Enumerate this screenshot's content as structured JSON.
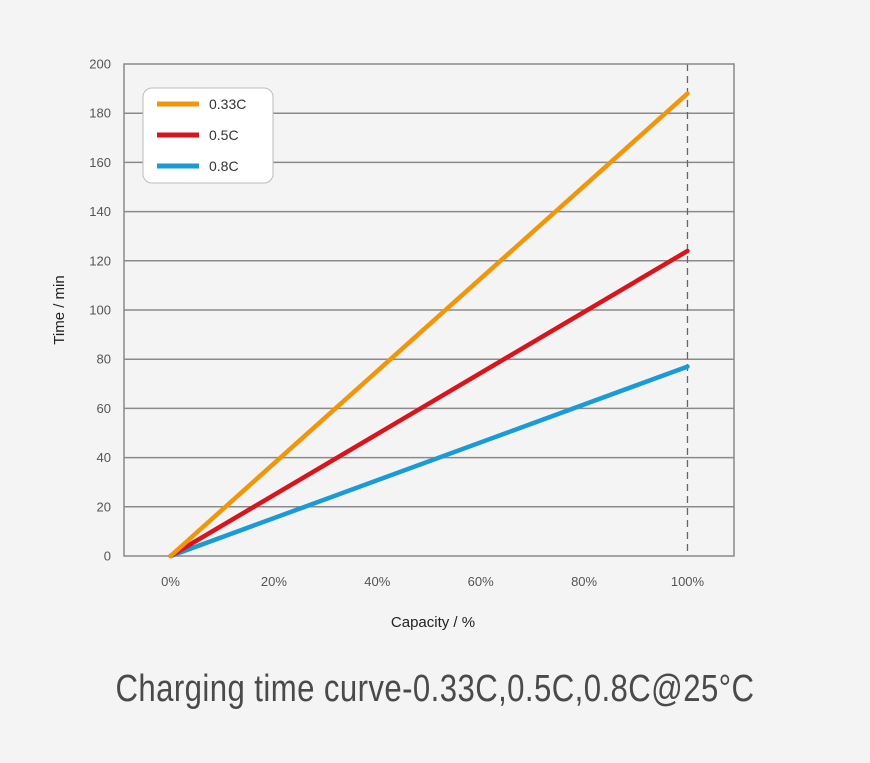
{
  "chart_data": {
    "type": "line",
    "title": "Charging time curve-0.33C,0.5C,0.8C@25°C",
    "xlabel": "Capacity / %",
    "ylabel": "Time / min",
    "x": [
      0,
      100
    ],
    "x_ticks": [
      "0%",
      "20%",
      "40%",
      "60%",
      "80%",
      "100%"
    ],
    "x_tick_values": [
      0,
      20,
      40,
      60,
      80,
      100
    ],
    "xlim": [
      -9,
      109
    ],
    "y_ticks": [
      "0",
      "20",
      "40",
      "60",
      "80",
      "100",
      "120",
      "140",
      "160",
      "180",
      "200"
    ],
    "y_tick_values": [
      0,
      20,
      40,
      60,
      80,
      100,
      120,
      140,
      160,
      180,
      200
    ],
    "ylim": [
      0,
      200
    ],
    "grid": "horizontal",
    "reference_line_x": 100,
    "legend_position": "top-left",
    "series": [
      {
        "name": "0.33C",
        "color": "#f0960a",
        "values": [
          0,
          188
        ]
      },
      {
        "name": "0.5C",
        "color": "#d9141c",
        "values": [
          0,
          124
        ]
      },
      {
        "name": "0.8C",
        "color": "#1a9ad6",
        "values": [
          0,
          77
        ]
      }
    ]
  }
}
